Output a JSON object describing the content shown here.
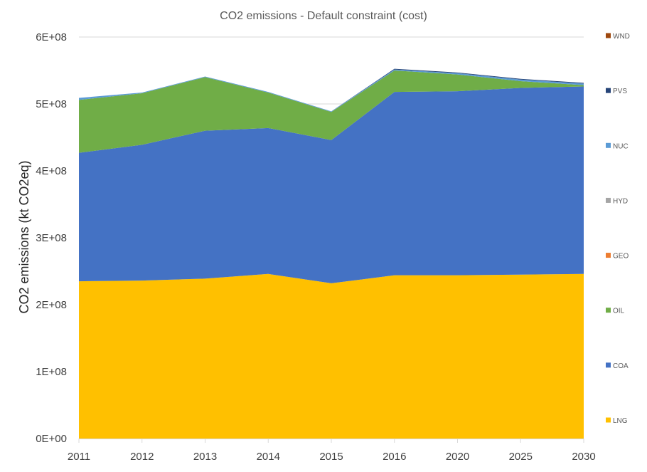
{
  "chart_data": {
    "type": "area",
    "stacked": true,
    "title": "CO2 emissions - Default constraint (cost)",
    "ylabel": "CO2 emissions (kt CO2eq)",
    "xlabel": "",
    "categories": [
      "2011",
      "2012",
      "2013",
      "2014",
      "2015",
      "2016",
      "2020",
      "2025",
      "2030"
    ],
    "ylim": [
      0,
      600000000
    ],
    "yticks": [
      {
        "value": 0,
        "label": "0E+00"
      },
      {
        "value": 100000000,
        "label": "1E+08"
      },
      {
        "value": 200000000,
        "label": "2E+08"
      },
      {
        "value": 300000000,
        "label": "3E+08"
      },
      {
        "value": 400000000,
        "label": "4E+08"
      },
      {
        "value": 500000000,
        "label": "5E+08"
      },
      {
        "value": 600000000,
        "label": "6E+08"
      }
    ],
    "grid": "horizontal",
    "legend": "right",
    "series": [
      {
        "name": "LNG",
        "color": "#FFC000",
        "values": [
          235000000,
          236000000,
          239000000,
          246000000,
          232000000,
          244000000,
          244000000,
          245000000,
          246000000
        ]
      },
      {
        "name": "COA",
        "color": "#4472C4",
        "values": [
          192000000,
          203000000,
          221000000,
          218000000,
          214000000,
          274000000,
          275000000,
          279000000,
          280000000
        ]
      },
      {
        "name": "OIL",
        "color": "#70AD47",
        "values": [
          79000000,
          77000000,
          80000000,
          53000000,
          42000000,
          32000000,
          25000000,
          10000000,
          2000000
        ]
      },
      {
        "name": "GEO",
        "color": "#ED7D31",
        "values": [
          0,
          0,
          0,
          0,
          0,
          0,
          0,
          0,
          0
        ]
      },
      {
        "name": "HYD",
        "color": "#A5A5A5",
        "values": [
          0,
          0,
          0,
          0,
          0,
          0,
          0,
          0,
          0
        ]
      },
      {
        "name": "NUC",
        "color": "#5B9BD5",
        "values": [
          3000000,
          1000000,
          1000000,
          1000000,
          1000000,
          1500000,
          2000000,
          2500000,
          2500000
        ]
      },
      {
        "name": "PVS",
        "color": "#264478",
        "values": [
          0,
          0,
          0,
          0,
          0,
          1000000,
          1000000,
          1000000,
          1000000
        ]
      },
      {
        "name": "WND",
        "color": "#9E480E",
        "values": [
          0,
          0,
          0,
          0,
          0,
          0,
          0,
          0,
          0
        ]
      }
    ],
    "axis_color": "#D9D9D9",
    "grid_color": "#D9D9D9"
  }
}
